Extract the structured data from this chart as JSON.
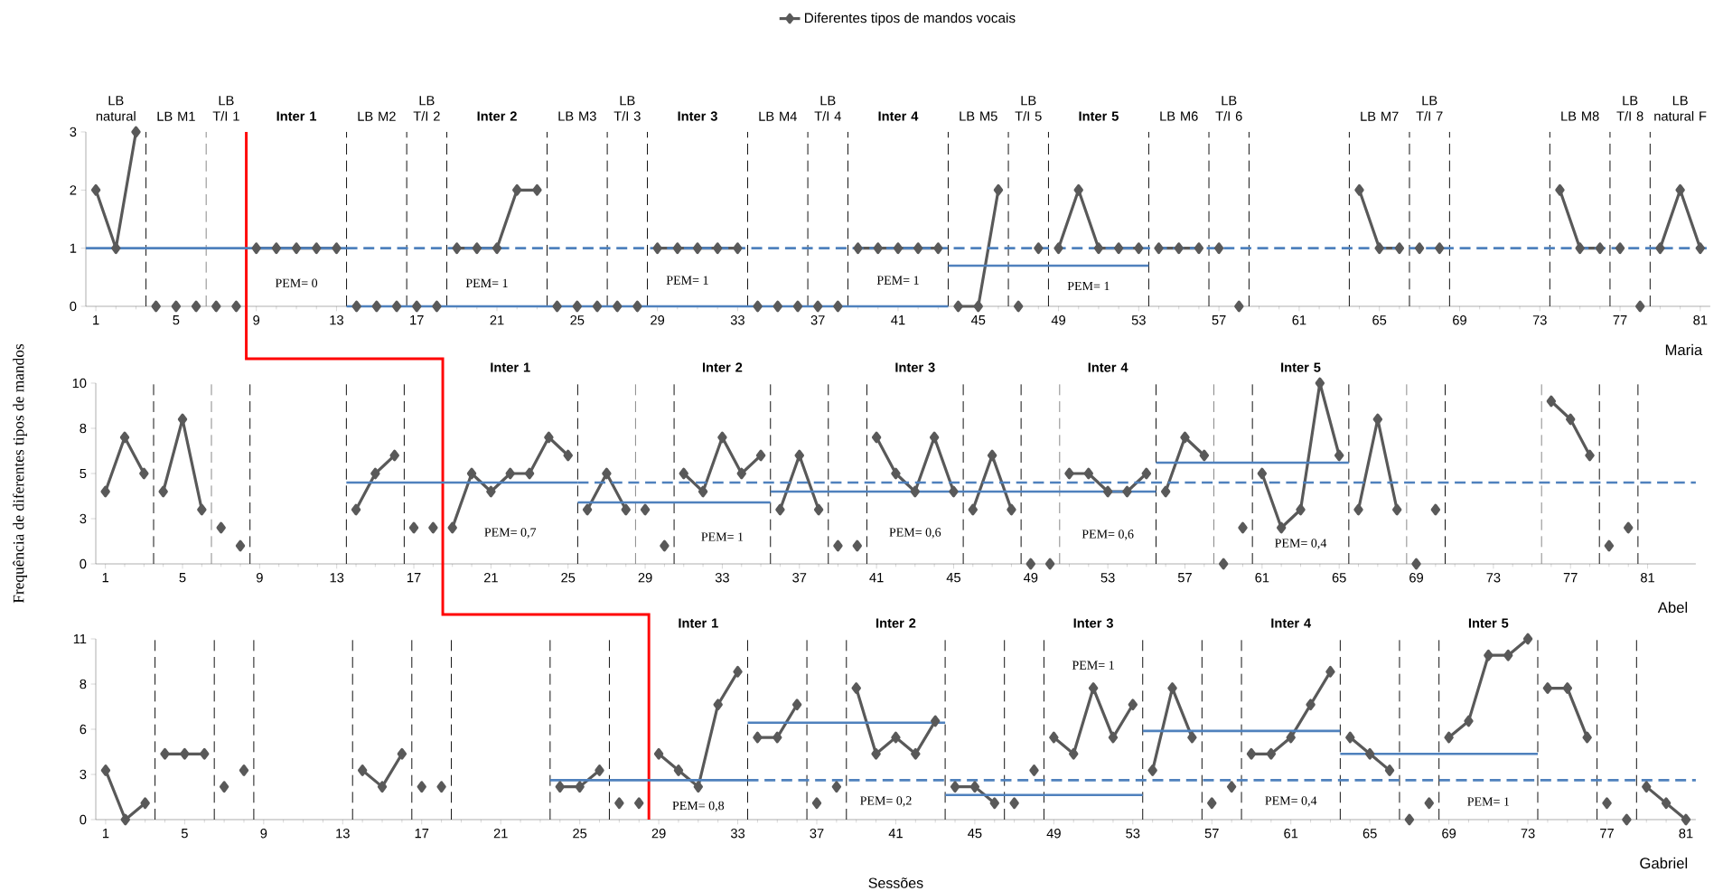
{
  "chart_data": [
    {
      "type": "line",
      "title": "Maria",
      "legend": "top",
      "marker": "diamond",
      "xlim": [
        0.5,
        81.5
      ],
      "ylim": [
        0,
        3
      ],
      "xticks": [
        1,
        5,
        9,
        13,
        17,
        21,
        25,
        29,
        33,
        37,
        41,
        45,
        49,
        53,
        57,
        61,
        65,
        69,
        73,
        77,
        81
      ],
      "yticks": [
        0,
        1,
        2,
        3
      ],
      "series": [
        {
          "name": "Diferentes tipos de mandos vocais",
          "color": "#595959",
          "x": [
            1,
            2,
            3,
            3.5,
            4,
            4.5,
            5,
            5.5,
            6,
            6.5,
            7,
            7.5,
            8,
            8.5,
            9,
            10,
            11,
            12,
            13,
            13.5,
            14,
            14.5,
            15,
            15.5,
            16,
            16.5,
            17,
            17.5,
            18,
            18.5,
            19,
            20,
            21,
            22,
            23,
            23.5,
            24,
            24.5,
            25,
            25.5,
            26,
            26.5,
            27,
            27.5,
            28,
            28.5,
            29,
            30,
            31,
            32,
            33,
            33.5,
            34,
            34.5,
            35,
            35.5,
            36,
            36.5,
            37,
            37.5,
            38,
            38.5,
            39,
            40,
            41,
            42,
            43,
            43.5,
            44,
            45,
            46,
            46.5,
            47,
            47.5,
            48,
            48.5,
            49,
            50,
            51,
            52,
            53,
            53.5,
            54,
            55,
            56,
            56.5,
            57,
            57.5,
            58,
            58.5,
            64,
            65,
            66,
            66.5,
            67,
            67.5,
            68,
            68.5,
            74,
            75,
            76,
            76.5,
            77,
            77.5,
            78,
            78.5,
            79,
            80,
            81
          ],
          "values": [
            2,
            1,
            3,
            null,
            0,
            null,
            0,
            null,
            0,
            null,
            0,
            null,
            0,
            null,
            1,
            1,
            1,
            1,
            1,
            null,
            0,
            null,
            0,
            null,
            0,
            null,
            0,
            null,
            0,
            null,
            1,
            1,
            1,
            2,
            2,
            null,
            0,
            null,
            0,
            null,
            0,
            null,
            0,
            null,
            0,
            null,
            1,
            1,
            1,
            1,
            1,
            null,
            0,
            null,
            0,
            null,
            0,
            null,
            0,
            null,
            0,
            null,
            1,
            1,
            1,
            1,
            1,
            null,
            0,
            0,
            2,
            null,
            0,
            null,
            1,
            null,
            1,
            2,
            1,
            1,
            1,
            null,
            1,
            1,
            1,
            null,
            1,
            null,
            0,
            null,
            2,
            1,
            1,
            null,
            1,
            null,
            1,
            null,
            2,
            1,
            1,
            null,
            1,
            null,
            0,
            null,
            1,
            2,
            1
          ]
        },
        {
          "type": "line",
          "color": "#4f81bd",
          "marker": "none",
          "line_style": "solid",
          "x": [
            0.5,
            13.5
          ],
          "values": [
            1,
            1
          ]
        },
        {
          "type": "line",
          "color": "#4f81bd",
          "marker": "none",
          "line_style": "dashed",
          "x": [
            13.5,
            81.5
          ],
          "values": [
            1,
            1
          ]
        },
        {
          "type": "line",
          "color": "#4f81bd",
          "marker": "none",
          "line_style": "solid",
          "x": [
            13.5,
            43.5
          ],
          "values": [
            0,
            0
          ]
        },
        {
          "type": "line",
          "color": "#4f81bd",
          "marker": "none",
          "line_style": "solid",
          "x": [
            43.5,
            53.5
          ],
          "values": [
            0.7,
            0.7
          ]
        }
      ],
      "ref_lines": [
        {
          "axis": "x",
          "value": 3.5,
          "color": "#000000",
          "line_style": "dashed"
        },
        {
          "axis": "x",
          "value": 6.5,
          "color": "#808080",
          "line_style": "dashed"
        },
        {
          "axis": "x",
          "value": 8.5,
          "color": "#ff0000",
          "line_style": "solid"
        },
        {
          "axis": "x",
          "value": 13.5,
          "color": "#000000",
          "line_style": "dashed"
        },
        {
          "axis": "x",
          "value": 16.5,
          "color": "#000000",
          "line_style": "dashed"
        },
        {
          "axis": "x",
          "value": 18.5,
          "color": "#000000",
          "line_style": "dashed"
        },
        {
          "axis": "x",
          "value": 23.5,
          "color": "#000000",
          "line_style": "dashed"
        },
        {
          "axis": "x",
          "value": 26.5,
          "color": "#000000",
          "line_style": "dashed"
        },
        {
          "axis": "x",
          "value": 28.5,
          "color": "#000000",
          "line_style": "dashed"
        },
        {
          "axis": "x",
          "value": 33.5,
          "color": "#000000",
          "line_style": "dashed"
        },
        {
          "axis": "x",
          "value": 36.5,
          "color": "#000000",
          "line_style": "dashed"
        },
        {
          "axis": "x",
          "value": 38.5,
          "color": "#000000",
          "line_style": "dashed"
        },
        {
          "axis": "x",
          "value": 43.5,
          "color": "#000000",
          "line_style": "dashed"
        },
        {
          "axis": "x",
          "value": 46.5,
          "color": "#000000",
          "line_style": "dashed"
        },
        {
          "axis": "x",
          "value": 48.5,
          "color": "#000000",
          "line_style": "dashed"
        },
        {
          "axis": "x",
          "value": 53.5,
          "color": "#000000",
          "line_style": "dashed"
        },
        {
          "axis": "x",
          "value": 56.5,
          "color": "#000000",
          "line_style": "dashed"
        },
        {
          "axis": "x",
          "value": 58.5,
          "color": "#000000",
          "line_style": "dashed"
        },
        {
          "axis": "x",
          "value": 63.5,
          "color": "#000000",
          "line_style": "dashed"
        },
        {
          "axis": "x",
          "value": 66.5,
          "color": "#000000",
          "line_style": "dashed"
        },
        {
          "axis": "x",
          "value": 68.5,
          "color": "#000000",
          "line_style": "dashed"
        },
        {
          "axis": "x",
          "value": 73.5,
          "color": "#000000",
          "line_style": "dashed"
        },
        {
          "axis": "x",
          "value": 76.5,
          "color": "#000000",
          "line_style": "dashed"
        },
        {
          "axis": "x",
          "value": 78.5,
          "color": "#000000",
          "line_style": "dashed"
        }
      ],
      "annotations": [
        "LB natural",
        "LB M1",
        "LB T/I 1",
        "**Inter 1**",
        "LB M2",
        "LB T/I 2",
        "**Inter 2**",
        "LB M3",
        "LB T/I 3",
        "**Inter 3**",
        "LB M4",
        "LB T/I 4",
        "**Inter 4**",
        "LB M5",
        "LB T/I 5",
        "**Inter 5**",
        "LB M6",
        "LB T/I 6",
        "LB M7",
        "LB T/I 7",
        "LB M8",
        "LB T/I 8",
        "LB natural F",
        "PEM= 0",
        "PEM= 1",
        "PEM= 1",
        "PEM= 1",
        "PEM= 1"
      ]
    },
    {
      "type": "line",
      "title": "Abel",
      "ylabel": "Frequência de diferentes tipos de mandos",
      "marker": "diamond",
      "xlim": [
        0.5,
        83.5
      ],
      "ylim": [
        0,
        10
      ],
      "xticks": [
        1,
        5,
        9,
        13,
        17,
        21,
        25,
        29,
        33,
        37,
        41,
        45,
        49,
        53,
        57,
        61,
        65,
        69,
        73,
        77,
        81
      ],
      "yticks": [
        0,
        {
          "value": 2.5,
          "label": "3"
        },
        5,
        {
          "value": 7.5,
          "label": "8"
        },
        10
      ],
      "series": [
        {
          "color": "#595959",
          "x": [
            1,
            2,
            3,
            3.5,
            4,
            5,
            6,
            6.5,
            7,
            7.5,
            8,
            8.5,
            14,
            15,
            16,
            16.5,
            17,
            17.5,
            18,
            18.5,
            19,
            20,
            21,
            22,
            23,
            24,
            25,
            25.5,
            26,
            27,
            28,
            28.5,
            29,
            29.5,
            30,
            30.5,
            31,
            32,
            33,
            34,
            35,
            35.5,
            36,
            37,
            38,
            38.5,
            39,
            39.5,
            40,
            40.5,
            41,
            42,
            43,
            44,
            45,
            45.5,
            46,
            47,
            48,
            48.5,
            49,
            49.5,
            50,
            50.5,
            51,
            52,
            53,
            54,
            55,
            55.5,
            56,
            57,
            58,
            58.5,
            59,
            59.5,
            60,
            60.5,
            61,
            62,
            63,
            64,
            65,
            65.5,
            66,
            67,
            68,
            68.5,
            69,
            69.5,
            70,
            70.5,
            76,
            77,
            78,
            78.5,
            79,
            79.5,
            80
          ],
          "values": [
            4,
            7,
            5,
            null,
            4,
            8,
            3,
            null,
            2,
            null,
            1,
            null,
            3,
            5,
            6,
            null,
            2,
            null,
            2,
            null,
            2,
            5,
            4,
            5,
            5,
            7,
            6,
            null,
            3,
            5,
            3,
            null,
            3,
            null,
            1,
            null,
            5,
            4,
            7,
            5,
            6,
            null,
            3,
            6,
            3,
            null,
            1,
            null,
            1,
            null,
            7,
            5,
            4,
            7,
            4,
            null,
            3,
            6,
            3,
            null,
            0,
            null,
            0,
            null,
            5,
            5,
            4,
            4,
            5,
            null,
            4,
            7,
            6,
            null,
            0,
            null,
            2,
            null,
            5,
            2,
            3,
            10,
            6,
            null,
            3,
            8,
            3,
            null,
            0,
            null,
            3,
            null,
            9,
            8,
            6,
            null,
            1,
            null,
            2
          ]
        },
        {
          "type": "line",
          "color": "#4f81bd",
          "marker": "none",
          "line_style": "solid",
          "x": [
            13.5,
            25.5
          ],
          "values": [
            4.5,
            4.5
          ]
        },
        {
          "type": "line",
          "color": "#4f81bd",
          "marker": "none",
          "line_style": "dashed",
          "x": [
            25.5,
            83.5
          ],
          "values": [
            4.5,
            4.5
          ]
        },
        {
          "type": "line",
          "color": "#4f81bd",
          "marker": "none",
          "line_style": "solid",
          "x": [
            25.5,
            35.5
          ],
          "values": [
            3.4,
            3.4
          ]
        },
        {
          "type": "line",
          "color": "#4f81bd",
          "marker": "none",
          "line_style": "solid",
          "x": [
            35.5,
            55.5
          ],
          "values": [
            4,
            4
          ]
        },
        {
          "type": "line",
          "color": "#4f81bd",
          "marker": "none",
          "line_style": "solid",
          "x": [
            55.5,
            65.5
          ],
          "values": [
            5.6,
            5.6
          ]
        }
      ],
      "ref_lines": [
        {
          "axis": "x",
          "value": 3.5,
          "color": "#000000",
          "line_style": "dashed"
        },
        {
          "axis": "x",
          "value": 6.5,
          "color": "#808080",
          "line_style": "dashed"
        },
        {
          "axis": "x",
          "value": 8.5,
          "color": "#000000",
          "line_style": "dashed"
        },
        {
          "axis": "x",
          "value": 13.5,
          "color": "#000000",
          "line_style": "dashed"
        },
        {
          "axis": "x",
          "value": 16.5,
          "color": "#000000",
          "line_style": "dashed"
        },
        {
          "axis": "x",
          "value": 18.5,
          "color": "#ff0000",
          "line_style": "solid"
        },
        {
          "axis": "x",
          "value": 25.5,
          "color": "#000000",
          "line_style": "dashed"
        },
        {
          "axis": "x",
          "value": 28.5,
          "color": "#808080",
          "line_style": "dashed"
        },
        {
          "axis": "x",
          "value": 30.5,
          "color": "#000000",
          "line_style": "dashed"
        },
        {
          "axis": "x",
          "value": 35.5,
          "color": "#000000",
          "line_style": "dashed"
        },
        {
          "axis": "x",
          "value": 38.5,
          "color": "#000000",
          "line_style": "dashed"
        },
        {
          "axis": "x",
          "value": 40.5,
          "color": "#000000",
          "line_style": "dashed"
        },
        {
          "axis": "x",
          "value": 45.5,
          "color": "#000000",
          "line_style": "dashed"
        },
        {
          "axis": "x",
          "value": 48.5,
          "color": "#000000",
          "line_style": "dashed"
        },
        {
          "axis": "x",
          "value": 50.5,
          "color": "#808080",
          "line_style": "dashed"
        },
        {
          "axis": "x",
          "value": 55.5,
          "color": "#000000",
          "line_style": "dashed"
        },
        {
          "axis": "x",
          "value": 58.5,
          "color": "#808080",
          "line_style": "dashed"
        },
        {
          "axis": "x",
          "value": 60.5,
          "color": "#000000",
          "line_style": "dashed"
        },
        {
          "axis": "x",
          "value": 65.5,
          "color": "#000000",
          "line_style": "dashed"
        },
        {
          "axis": "x",
          "value": 68.5,
          "color": "#808080",
          "line_style": "dashed"
        },
        {
          "axis": "x",
          "value": 70.5,
          "color": "#000000",
          "line_style": "dashed"
        },
        {
          "axis": "x",
          "value": 75.5,
          "color": "#808080",
          "line_style": "dashed"
        },
        {
          "axis": "x",
          "value": 78.5,
          "color": "#000000",
          "line_style": "dashed"
        },
        {
          "axis": "x",
          "value": 80.5,
          "color": "#000000",
          "line_style": "dashed"
        }
      ],
      "annotations": [
        "**Inter 1**",
        "**Inter 2**",
        "**Inter 3**",
        "**Inter 4**",
        "**Inter 5**",
        "PEM= 0,7",
        "PEM= 1",
        "PEM= 0,6",
        "PEM= 0,6",
        "PEM= 0,4"
      ]
    },
    {
      "type": "line",
      "title": "Gabriel",
      "xlabel": "Sessões",
      "marker": "diamond",
      "xlim": [
        0.5,
        81.5
      ],
      "ylim": [
        0,
        11
      ],
      "xticks": [
        1,
        5,
        9,
        13,
        17,
        21,
        25,
        29,
        33,
        37,
        41,
        45,
        49,
        53,
        57,
        61,
        65,
        69,
        73,
        77,
        81
      ],
      "yticks": [
        0,
        {
          "value": 2.75,
          "label": "3"
        },
        {
          "value": 5.5,
          "label": "6"
        },
        {
          "value": 8.25,
          "label": "8"
        },
        11
      ],
      "series": [
        {
          "color": "#595959",
          "x": [
            1,
            2,
            3,
            3.5,
            4,
            5,
            6,
            6.5,
            7,
            7.5,
            8,
            8.5,
            14,
            15,
            16,
            16.5,
            17,
            17.5,
            18,
            18.5,
            24,
            25,
            26,
            26.5,
            27,
            27.5,
            28,
            28.5,
            29,
            30,
            31,
            32,
            33,
            33.5,
            34,
            35,
            36,
            36.5,
            37,
            37.5,
            38,
            38.5,
            39,
            40,
            41,
            42,
            43,
            43.5,
            44,
            45,
            46,
            46.5,
            47,
            47.5,
            48,
            48.5,
            49,
            50,
            51,
            52,
            53,
            53.5,
            54,
            55,
            56,
            56.5,
            57,
            57.5,
            58,
            58.5,
            59,
            60,
            61,
            62,
            63,
            63.5,
            64,
            65,
            66,
            66.5,
            67,
            67.5,
            68,
            68.5,
            69,
            70,
            71,
            72,
            73,
            73.5,
            74,
            75,
            76,
            76.5,
            77,
            77.5,
            78,
            78.5,
            79,
            80,
            81
          ],
          "values": [
            3,
            0,
            1,
            null,
            4,
            4,
            4,
            null,
            2,
            null,
            3,
            null,
            3,
            2,
            4,
            null,
            2,
            null,
            2,
            null,
            2,
            2,
            3,
            null,
            1,
            null,
            1,
            null,
            4,
            3,
            2,
            7,
            9,
            null,
            5,
            5,
            7,
            null,
            1,
            null,
            2,
            null,
            8,
            4,
            5,
            4,
            6,
            null,
            2,
            2,
            1,
            null,
            1,
            null,
            3,
            null,
            5,
            4,
            8,
            5,
            7,
            null,
            3,
            8,
            5,
            null,
            1,
            null,
            2,
            null,
            4,
            4,
            5,
            7,
            9,
            null,
            5,
            4,
            3,
            null,
            0,
            null,
            1,
            null,
            5,
            6,
            10,
            10,
            11,
            null,
            8,
            8,
            5,
            null,
            1,
            null,
            0,
            null,
            2,
            1,
            0
          ]
        },
        {
          "type": "line",
          "color": "#4f81bd",
          "marker": "none",
          "line_style": "solid",
          "x": [
            23.5,
            33.5
          ],
          "values": [
            2.4,
            2.4
          ]
        },
        {
          "type": "line",
          "color": "#4f81bd",
          "marker": "none",
          "line_style": "dashed",
          "x": [
            33.5,
            81.5
          ],
          "values": [
            2.4,
            2.4
          ]
        },
        {
          "type": "line",
          "color": "#4f81bd",
          "marker": "none",
          "line_style": "solid",
          "x": [
            33.5,
            43.5
          ],
          "values": [
            5.9,
            5.9
          ]
        },
        {
          "type": "line",
          "color": "#4f81bd",
          "marker": "none",
          "line_style": "solid",
          "x": [
            43.5,
            53.5
          ],
          "values": [
            1.5,
            1.5
          ]
        },
        {
          "type": "line",
          "color": "#4f81bd",
          "marker": "none",
          "line_style": "solid",
          "x": [
            53.5,
            63.5
          ],
          "values": [
            5.4,
            5.4
          ]
        },
        {
          "type": "line",
          "color": "#4f81bd",
          "marker": "none",
          "line_style": "solid",
          "x": [
            63.5,
            73.5
          ],
          "values": [
            4,
            4
          ]
        }
      ],
      "ref_lines": [
        {
          "axis": "x",
          "value": 3.5,
          "color": "#000000",
          "line_style": "dashed"
        },
        {
          "axis": "x",
          "value": 6.5,
          "color": "#000000",
          "line_style": "dashed"
        },
        {
          "axis": "x",
          "value": 8.5,
          "color": "#000000",
          "line_style": "dashed"
        },
        {
          "axis": "x",
          "value": 13.5,
          "color": "#000000",
          "line_style": "dashed"
        },
        {
          "axis": "x",
          "value": 16.5,
          "color": "#000000",
          "line_style": "dashed"
        },
        {
          "axis": "x",
          "value": 18.5,
          "color": "#000000",
          "line_style": "dashed"
        },
        {
          "axis": "x",
          "value": 23.5,
          "color": "#000000",
          "line_style": "dashed"
        },
        {
          "axis": "x",
          "value": 26.5,
          "color": "#000000",
          "line_style": "dashed"
        },
        {
          "axis": "x",
          "value": 28.5,
          "color": "#ff0000",
          "line_style": "solid"
        },
        {
          "axis": "x",
          "value": 33.5,
          "color": "#000000",
          "line_style": "dashed"
        },
        {
          "axis": "x",
          "value": 36.5,
          "color": "#000000",
          "line_style": "dashed"
        },
        {
          "axis": "x",
          "value": 38.5,
          "color": "#000000",
          "line_style": "dashed"
        },
        {
          "axis": "x",
          "value": 43.5,
          "color": "#000000",
          "line_style": "dashed"
        },
        {
          "axis": "x",
          "value": 46.5,
          "color": "#000000",
          "line_style": "dashed"
        },
        {
          "axis": "x",
          "value": 48.5,
          "color": "#000000",
          "line_style": "dashed"
        },
        {
          "axis": "x",
          "value": 53.5,
          "color": "#000000",
          "line_style": "dashed"
        },
        {
          "axis": "x",
          "value": 56.5,
          "color": "#000000",
          "line_style": "dashed"
        },
        {
          "axis": "x",
          "value": 58.5,
          "color": "#000000",
          "line_style": "dashed"
        },
        {
          "axis": "x",
          "value": 63.5,
          "color": "#000000",
          "line_style": "dashed"
        },
        {
          "axis": "x",
          "value": 66.5,
          "color": "#000000",
          "line_style": "dashed"
        },
        {
          "axis": "x",
          "value": 68.5,
          "color": "#000000",
          "line_style": "dashed"
        },
        {
          "axis": "x",
          "value": 73.5,
          "color": "#000000",
          "line_style": "dashed"
        },
        {
          "axis": "x",
          "value": 76.5,
          "color": "#000000",
          "line_style": "dashed"
        },
        {
          "axis": "x",
          "value": 78.5,
          "color": "#000000",
          "line_style": "dashed"
        }
      ],
      "annotations": [
        "**Inter 1**",
        "**Inter 2**",
        "**Inter 3**",
        "**Inter 4**",
        "**Inter 5**",
        "PEM= 0,8",
        "PEM= 0,2",
        "PEM= 1",
        "PEM= 0,4",
        "PEM= 1"
      ]
    }
  ]
}
